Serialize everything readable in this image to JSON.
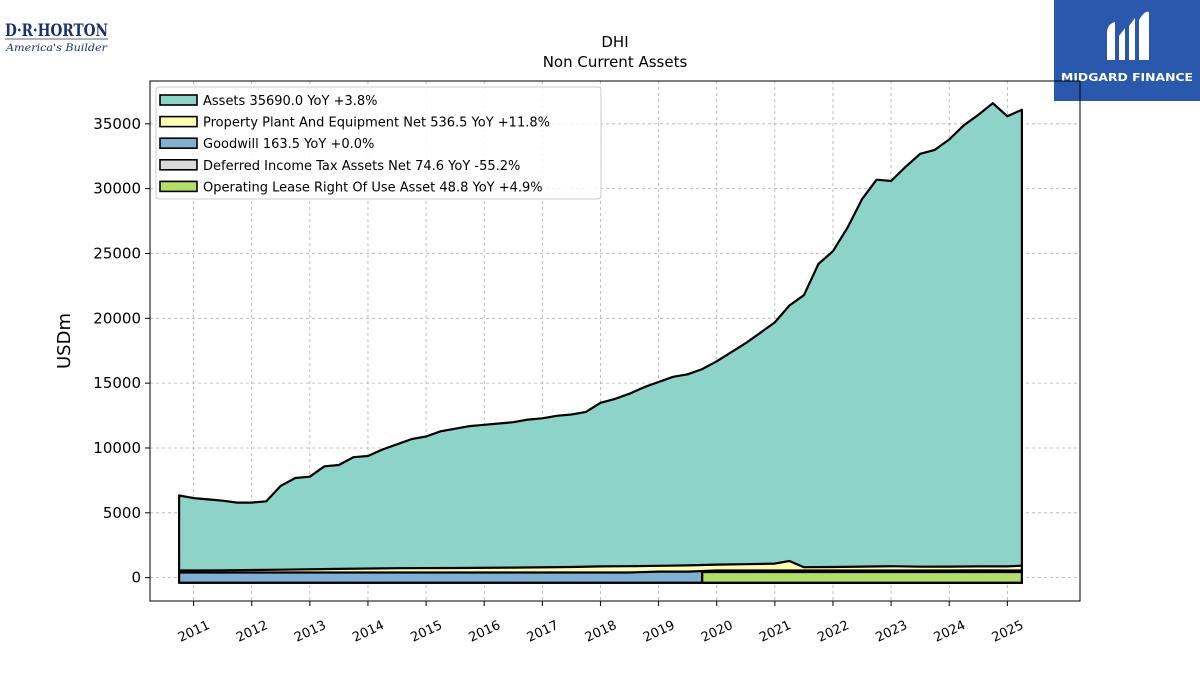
{
  "logos": {
    "left_brand": "D·R·HORTON",
    "left_tagline": "America's Builder",
    "right_brand": "MIDGARD FINANCE"
  },
  "chart_data": {
    "type": "area",
    "title": "DHI",
    "subtitle": "Non Current  Assets",
    "ylabel": "USDm",
    "xlabel": "",
    "ylim": [
      -1800,
      38300
    ],
    "xlim": [
      2010.25,
      2026.25
    ],
    "x_ticks": [
      "2011",
      "2012",
      "2013",
      "2014",
      "2015",
      "2016",
      "2017",
      "2018",
      "2019",
      "2020",
      "2021",
      "2022",
      "2023",
      "2024",
      "2025"
    ],
    "y_ticks": [
      0,
      5000,
      10000,
      15000,
      20000,
      25000,
      30000,
      35000
    ],
    "grid": true,
    "legend_position": "top-left",
    "series": [
      {
        "name": "Assets",
        "legend": "Assets  35690.0 YoY +3.8%",
        "color": "#8dd3c7",
        "x": [
          2010.75,
          2011.0,
          2011.25,
          2011.5,
          2011.75,
          2012.0,
          2012.25,
          2012.5,
          2012.75,
          2013.0,
          2013.25,
          2013.5,
          2013.75,
          2014.0,
          2014.25,
          2014.5,
          2014.75,
          2015.0,
          2015.25,
          2015.5,
          2015.75,
          2016.0,
          2016.25,
          2016.5,
          2016.75,
          2017.0,
          2017.25,
          2017.5,
          2017.75,
          2018.0,
          2018.25,
          2018.5,
          2018.75,
          2019.0,
          2019.25,
          2019.5,
          2019.75,
          2020.0,
          2020.25,
          2020.5,
          2020.75,
          2021.0,
          2021.25,
          2021.5,
          2021.75,
          2022.0,
          2022.25,
          2022.5,
          2022.75,
          2023.0,
          2023.25,
          2023.5,
          2023.75,
          2024.0,
          2024.25,
          2024.5,
          2024.75,
          2025.0,
          2025.25
        ],
        "values": [
          5950,
          5750,
          5650,
          5550,
          5400,
          5400,
          5500,
          6700,
          7300,
          7400,
          8200,
          8300,
          8900,
          9000,
          9500,
          9900,
          10300,
          10500,
          10900,
          11100,
          11300,
          11400,
          11500,
          11600,
          11800,
          11900,
          12100,
          12200,
          12400,
          13100,
          13400,
          13800,
          14300,
          14700,
          15100,
          15300,
          15700,
          16300,
          17000,
          17700,
          18500,
          19300,
          20600,
          21400,
          23800,
          24800,
          26600,
          28800,
          30300,
          30200,
          31300,
          32300,
          32600,
          33400,
          34500,
          35300,
          36200,
          35200,
          35690
        ]
      },
      {
        "name": "Property Plant And Equipment Net",
        "legend": "Property Plant And Equipment Net  536.5 YoY +11.8%",
        "color": "#ffffb3",
        "x": [
          2010.75,
          2011.5,
          2012.5,
          2013.5,
          2014.5,
          2015.5,
          2016.5,
          2017.5,
          2018.0,
          2018.5,
          2019.0,
          2019.5,
          2020.0,
          2020.5,
          2021.0,
          2021.25,
          2021.5,
          2022.0,
          2022.5,
          2023.0,
          2023.5,
          2024.0,
          2024.5,
          2025.0,
          2025.25
        ],
        "values": [
          170,
          180,
          230,
          290,
          340,
          360,
          390,
          440,
          480,
          500,
          530,
          560,
          620,
          650,
          700,
          900,
          420,
          440,
          470,
          500,
          460,
          470,
          480,
          480,
          536.5
        ]
      },
      {
        "name": "Goodwill",
        "legend": "Goodwill  163.5 YoY +0.0%",
        "color": "#80b1d3",
        "x": [
          2010.75,
          2011.5,
          2012.5,
          2013.5,
          2014.5,
          2015.5,
          2016.5,
          2017.5,
          2018.5,
          2019.0,
          2019.5,
          2020.0,
          2021.0,
          2022.0,
          2023.0,
          2024.0,
          2025.0,
          2025.25
        ],
        "values": [
          15,
          15,
          15,
          15,
          15,
          15,
          15,
          15,
          15,
          80,
          80,
          163.5,
          163.5,
          163.5,
          163.5,
          163.5,
          163.5,
          163.5
        ]
      },
      {
        "name": "Deferred Income Tax Assets Net",
        "legend": "Deferred Income Tax Assets Net  74.6 YoY -55.2%",
        "color": "#d9d9d9",
        "x": [
          2019.75,
          2020.5,
          2021.0,
          2021.25,
          2021.5,
          2022.0,
          2023.0,
          2024.0,
          2024.5,
          2025.0,
          2025.25
        ],
        "values": [
          0,
          0,
          0,
          10,
          50,
          40,
          40,
          160,
          170,
          160,
          74.6
        ]
      },
      {
        "name": "Operating Lease Right Of Use Asset",
        "legend": "Operating Lease Right Of Use Asset  48.8 YoY +4.9%",
        "color": "#b3de69",
        "x": [
          2019.75,
          2020.5,
          2021.5,
          2022.5,
          2023.5,
          2024.5,
          2025.25
        ],
        "values": [
          48,
          48,
          48,
          48,
          48,
          48,
          48.8
        ]
      }
    ]
  }
}
